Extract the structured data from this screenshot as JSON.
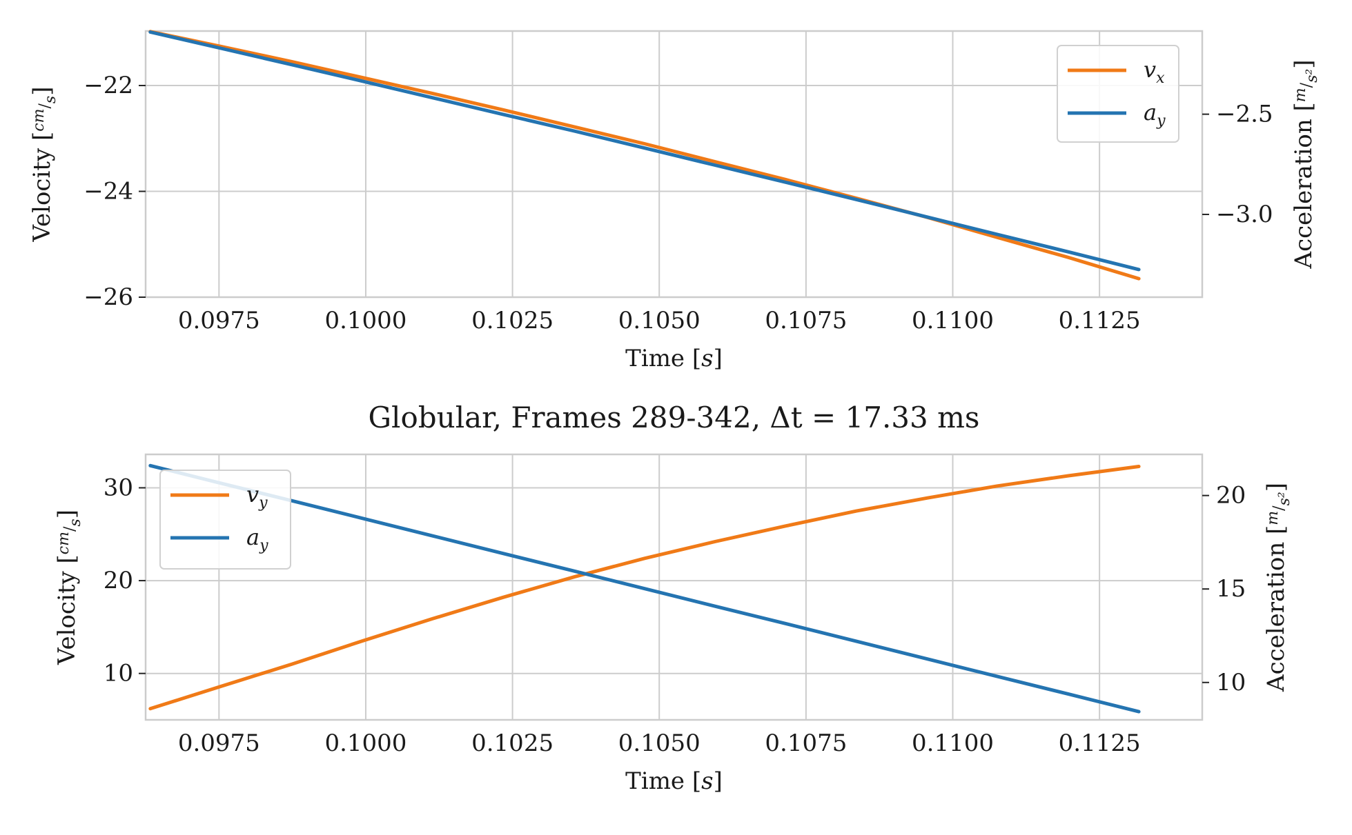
{
  "colors": {
    "orange": "#f07a17",
    "blue": "#2474b1",
    "grid": "#cccccc",
    "frame": "#cccccc"
  },
  "chart_data": [
    {
      "type": "line",
      "title": "",
      "xlabel": "Time [s]",
      "ylabel_left": "Velocity [cm/s]",
      "ylabel_right": "Acceleration [m/s²]",
      "xlim": [
        0.09625,
        0.11425
      ],
      "ylim_left": [
        -26.0,
        -20.97
      ],
      "ylim_right": [
        -3.413,
        -2.085
      ],
      "xticks": [
        0.0975,
        0.1,
        0.1025,
        0.105,
        0.1075,
        0.11,
        0.1125
      ],
      "xtick_labels": [
        "0.0975",
        "0.1000",
        "0.1025",
        "0.1050",
        "0.1075",
        "0.1100",
        "0.1125"
      ],
      "yticks_left": [
        -22,
        -24,
        -26
      ],
      "ytick_labels_left": [
        "−22",
        "−24",
        "−26"
      ],
      "yticks_right": [
        -2.5,
        -3.0
      ],
      "ytick_labels_right": [
        "−2.5",
        "−3.0"
      ],
      "grid": true,
      "legend_position": "top-right",
      "series": [
        {
          "name": "v_x",
          "legend_base": "v",
          "legend_sub": "x",
          "axis": "left",
          "color": "#f07a17",
          "x": [
            0.09633,
            0.09753,
            0.09874,
            0.09994,
            0.10114,
            0.10234,
            0.10355,
            0.10475,
            0.10595,
            0.10716,
            0.10836,
            0.10956,
            0.11076,
            0.11197,
            0.11317
          ],
          "y": [
            -20.98,
            -21.26,
            -21.55,
            -21.85,
            -22.15,
            -22.46,
            -22.78,
            -23.1,
            -23.44,
            -23.78,
            -24.13,
            -24.49,
            -24.87,
            -25.25,
            -25.65
          ]
        },
        {
          "name": "a_y",
          "legend_base": "a",
          "legend_sub": "y",
          "axis": "right",
          "color": "#2474b1",
          "x": [
            0.09633,
            0.09753,
            0.09874,
            0.09994,
            0.10114,
            0.10234,
            0.10355,
            0.10475,
            0.10595,
            0.10716,
            0.10836,
            0.10956,
            0.11076,
            0.11197,
            0.11317
          ],
          "y": [
            -2.09,
            -2.171,
            -2.253,
            -2.335,
            -2.418,
            -2.501,
            -2.584,
            -2.669,
            -2.754,
            -2.84,
            -2.926,
            -3.013,
            -3.1,
            -3.187,
            -3.275
          ]
        }
      ]
    },
    {
      "type": "line",
      "title": "Globular, Frames 289-342, Δt = 17.33 ms",
      "xlabel": "Time [s]",
      "ylabel_left": "Velocity [cm/s]",
      "ylabel_right": "Acceleration [m/s²]",
      "xlim": [
        0.09625,
        0.11425
      ],
      "ylim_left": [
        5.0,
        33.6
      ],
      "ylim_right": [
        8.0,
        22.2
      ],
      "xticks": [
        0.0975,
        0.1,
        0.1025,
        0.105,
        0.1075,
        0.11,
        0.1125
      ],
      "xtick_labels": [
        "0.0975",
        "0.1000",
        "0.1025",
        "0.1050",
        "0.1075",
        "0.1100",
        "0.1125"
      ],
      "yticks_left": [
        30,
        20,
        10
      ],
      "ytick_labels_left": [
        "30",
        "20",
        "10"
      ],
      "yticks_right": [
        20,
        15,
        10
      ],
      "ytick_labels_right": [
        "20",
        "15",
        "10"
      ],
      "grid": true,
      "legend_position": "top-left",
      "series": [
        {
          "name": "v_y",
          "legend_base": "v",
          "legend_sub": "y",
          "axis": "left",
          "color": "#f07a17",
          "x": [
            0.09633,
            0.09753,
            0.09874,
            0.09994,
            0.10114,
            0.10234,
            0.10355,
            0.10475,
            0.10595,
            0.10716,
            0.10836,
            0.10956,
            0.11076,
            0.11197,
            0.11317
          ],
          "y": [
            6.2,
            8.6,
            11.0,
            13.5,
            15.9,
            18.2,
            20.4,
            22.4,
            24.2,
            25.9,
            27.5,
            28.9,
            30.2,
            31.3,
            32.3
          ]
        },
        {
          "name": "a_y",
          "legend_base": "a",
          "legend_sub": "y",
          "axis": "right",
          "color": "#2474b1",
          "x": [
            0.09633,
            0.09753,
            0.09874,
            0.09994,
            0.10114,
            0.10234,
            0.10355,
            0.10475,
            0.10595,
            0.10716,
            0.10836,
            0.10956,
            0.11076,
            0.11197,
            0.11317
          ],
          "y": [
            21.6,
            20.66,
            19.72,
            18.78,
            17.84,
            16.9,
            15.96,
            15.02,
            14.08,
            13.14,
            12.2,
            11.26,
            10.32,
            9.38,
            8.44
          ]
        }
      ]
    }
  ]
}
